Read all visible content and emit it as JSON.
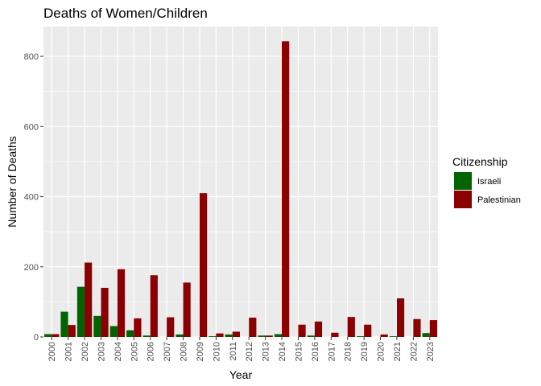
{
  "chart_data": {
    "type": "bar",
    "title": "Deaths of Women/Children",
    "xlabel": "Year",
    "ylabel": "Number of Deaths",
    "categories": [
      "2000",
      "2001",
      "2002",
      "2003",
      "2004",
      "2005",
      "2006",
      "2007",
      "2008",
      "2009",
      "2010",
      "2011",
      "2012",
      "2013",
      "2014",
      "2015",
      "2016",
      "2017",
      "2018",
      "2019",
      "2020",
      "2021",
      "2022",
      "2023"
    ],
    "series": [
      {
        "name": "Israeli",
        "color": "#006400",
        "values": [
          8,
          72,
          143,
          60,
          31,
          19,
          4,
          0,
          7,
          0,
          2,
          7,
          0,
          4,
          8,
          0,
          4,
          0,
          0,
          2,
          0,
          2,
          0,
          11
        ]
      },
      {
        "name": "Palestinian",
        "color": "#8B0000",
        "values": [
          8,
          34,
          212,
          140,
          193,
          53,
          176,
          56,
          155,
          410,
          10,
          15,
          55,
          4,
          843,
          35,
          44,
          12,
          57,
          35,
          7,
          110,
          51,
          48
        ]
      }
    ],
    "ylim": [
      0,
      885
    ],
    "yticks": [
      0,
      200,
      400,
      600,
      800
    ],
    "grid": true,
    "legend": {
      "title": "Citizenship",
      "position": "right"
    },
    "panel_background": "#EBEBEB",
    "grid_color": "#FFFFFF"
  }
}
